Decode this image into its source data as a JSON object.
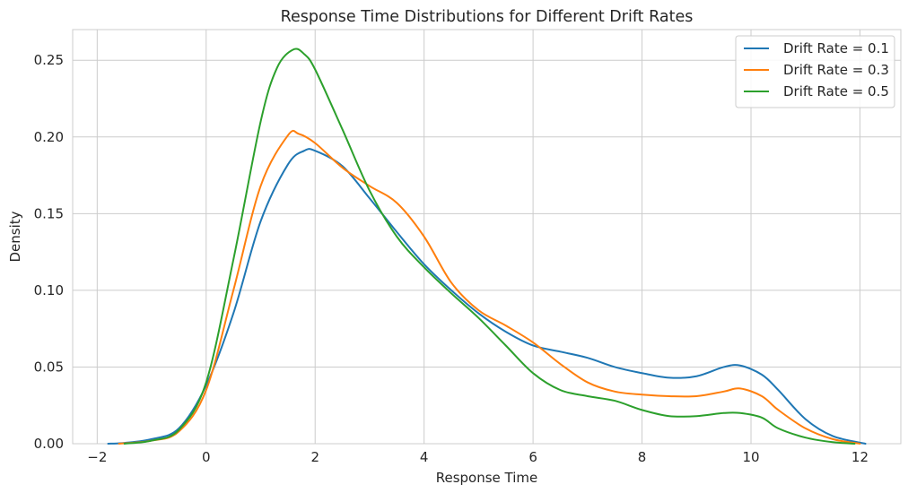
{
  "chart_data": {
    "type": "line",
    "title": "Response Time Distributions for Different Drift Rates",
    "xlabel": "Response Time",
    "ylabel": "Density",
    "xlim": [
      -2.45,
      12.75
    ],
    "ylim": [
      0,
      0.27
    ],
    "xticks": [
      -2,
      0,
      2,
      4,
      6,
      8,
      10,
      12
    ],
    "xtick_labels": [
      "−2",
      "0",
      "2",
      "4",
      "6",
      "8",
      "10",
      "12"
    ],
    "yticks": [
      0,
      0.05,
      0.1,
      0.15,
      0.2,
      0.25
    ],
    "ytick_labels": [
      "0.00",
      "0.05",
      "0.10",
      "0.15",
      "0.20",
      "0.25"
    ],
    "grid": true,
    "legend_position": "top-right",
    "series": [
      {
        "name": "Drift Rate = 0.1",
        "color": "#1f77b4",
        "points": [
          [
            -1.8,
            0.0
          ],
          [
            -1.5,
            0.0005
          ],
          [
            -1.0,
            0.003
          ],
          [
            -0.5,
            0.01
          ],
          [
            0,
            0.038
          ],
          [
            0.5,
            0.085
          ],
          [
            1.0,
            0.145
          ],
          [
            1.5,
            0.182
          ],
          [
            1.8,
            0.191
          ],
          [
            2.0,
            0.191
          ],
          [
            2.5,
            0.181
          ],
          [
            3.0,
            0.16
          ],
          [
            3.5,
            0.138
          ],
          [
            4.0,
            0.117
          ],
          [
            4.5,
            0.1
          ],
          [
            5.0,
            0.085
          ],
          [
            5.5,
            0.073
          ],
          [
            6.0,
            0.064
          ],
          [
            6.5,
            0.06
          ],
          [
            7.0,
            0.056
          ],
          [
            7.5,
            0.05
          ],
          [
            8.0,
            0.046
          ],
          [
            8.5,
            0.043
          ],
          [
            9.0,
            0.044
          ],
          [
            9.5,
            0.05
          ],
          [
            9.8,
            0.051
          ],
          [
            10.2,
            0.045
          ],
          [
            10.5,
            0.035
          ],
          [
            11.0,
            0.016
          ],
          [
            11.5,
            0.005
          ],
          [
            12.1,
            0.0
          ]
        ]
      },
      {
        "name": "Drift Rate = 0.3",
        "color": "#ff7f0e",
        "points": [
          [
            -1.6,
            0.0
          ],
          [
            -1.0,
            0.002
          ],
          [
            -0.5,
            0.008
          ],
          [
            0,
            0.035
          ],
          [
            0.5,
            0.1
          ],
          [
            1.0,
            0.168
          ],
          [
            1.5,
            0.201
          ],
          [
            1.7,
            0.202
          ],
          [
            2.0,
            0.196
          ],
          [
            2.5,
            0.18
          ],
          [
            3.0,
            0.168
          ],
          [
            3.5,
            0.157
          ],
          [
            4.0,
            0.135
          ],
          [
            4.5,
            0.105
          ],
          [
            5.0,
            0.087
          ],
          [
            5.5,
            0.077
          ],
          [
            6.0,
            0.066
          ],
          [
            6.5,
            0.052
          ],
          [
            7.0,
            0.04
          ],
          [
            7.5,
            0.034
          ],
          [
            8.0,
            0.032
          ],
          [
            8.5,
            0.031
          ],
          [
            9.0,
            0.031
          ],
          [
            9.5,
            0.034
          ],
          [
            9.8,
            0.036
          ],
          [
            10.2,
            0.031
          ],
          [
            10.5,
            0.022
          ],
          [
            11.0,
            0.01
          ],
          [
            11.5,
            0.003
          ],
          [
            12.0,
            0.0
          ]
        ]
      },
      {
        "name": "Drift Rate = 0.5",
        "color": "#2ca02c",
        "points": [
          [
            -1.5,
            0.0
          ],
          [
            -1.0,
            0.002
          ],
          [
            -0.5,
            0.009
          ],
          [
            0,
            0.04
          ],
          [
            0.5,
            0.12
          ],
          [
            1.0,
            0.21
          ],
          [
            1.3,
            0.245
          ],
          [
            1.6,
            0.257
          ],
          [
            1.8,
            0.254
          ],
          [
            2.0,
            0.244
          ],
          [
            2.5,
            0.205
          ],
          [
            3.0,
            0.165
          ],
          [
            3.5,
            0.135
          ],
          [
            4.0,
            0.115
          ],
          [
            4.5,
            0.098
          ],
          [
            5.0,
            0.082
          ],
          [
            5.5,
            0.064
          ],
          [
            6.0,
            0.046
          ],
          [
            6.5,
            0.035
          ],
          [
            7.0,
            0.031
          ],
          [
            7.5,
            0.028
          ],
          [
            8.0,
            0.022
          ],
          [
            8.5,
            0.018
          ],
          [
            9.0,
            0.018
          ],
          [
            9.5,
            0.02
          ],
          [
            9.8,
            0.02
          ],
          [
            10.2,
            0.017
          ],
          [
            10.5,
            0.01
          ],
          [
            11.0,
            0.004
          ],
          [
            11.5,
            0.001
          ],
          [
            11.9,
            0.0
          ]
        ]
      }
    ]
  }
}
